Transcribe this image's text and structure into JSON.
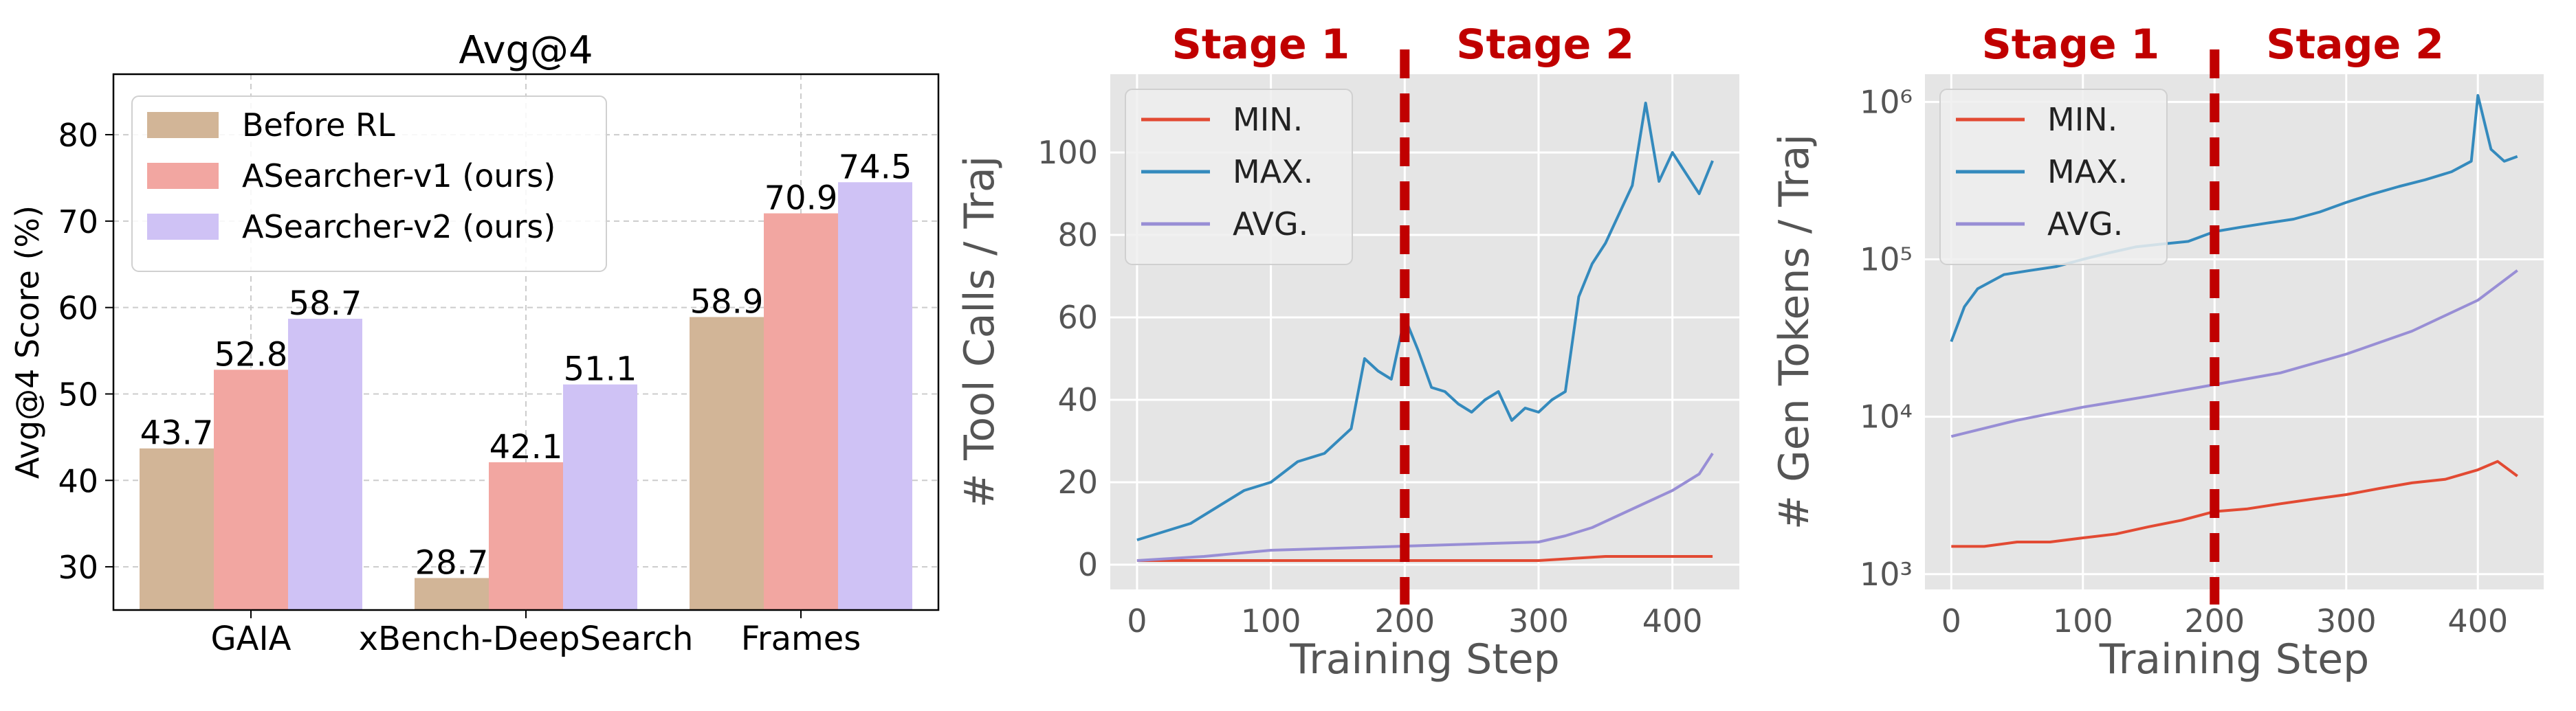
{
  "chart_data": [
    {
      "type": "bar",
      "title": "Avg@4",
      "xlabel": "",
      "ylabel": "Avg@4 Score (%)",
      "ylim": [
        25,
        87
      ],
      "yticks": [
        30,
        40,
        50,
        60,
        70,
        80
      ],
      "grid": true,
      "legend": "top-left",
      "categories": [
        "GAIA",
        "xBench-DeepSearch",
        "Frames"
      ],
      "series": [
        {
          "name": "Before RL",
          "values": [
            43.7,
            28.7,
            58.9
          ],
          "labels": [
            "43.7",
            "28.7",
            "58.9"
          ],
          "color": "#d2b597"
        },
        {
          "name": "ASearcher-v1 (ours)",
          "values": [
            52.8,
            42.1,
            70.9
          ],
          "labels": [
            "52.8",
            "42.1",
            "70.9"
          ],
          "color": "#f2a6a1"
        },
        {
          "name": "ASearcher-v2 (ours)",
          "values": [
            58.7,
            51.1,
            74.5
          ],
          "labels": [
            "58.7",
            "51.1",
            "74.5"
          ],
          "color": "#cfc2f5"
        }
      ]
    },
    {
      "type": "line",
      "title": "",
      "xlabel": "Training Step",
      "ylabel": "# Tool Calls / Traj",
      "xlim": [
        -20,
        450
      ],
      "ylim": [
        -6,
        119
      ],
      "xticks": [
        0,
        100,
        200,
        300,
        400
      ],
      "yticks": [
        0,
        20,
        40,
        60,
        80,
        100
      ],
      "grid": true,
      "legend": "top-left",
      "divider": {
        "x": 200,
        "left_label": "Stage 1",
        "right_label": "Stage 2",
        "color": "#c00000"
      },
      "series": [
        {
          "name": "MIN.",
          "color": "#e24a33",
          "x": [
            0,
            50,
            100,
            150,
            200,
            250,
            300,
            350,
            400,
            430
          ],
          "y": [
            1,
            1,
            1,
            1,
            1,
            1,
            1,
            2,
            2,
            2
          ]
        },
        {
          "name": "MAX.",
          "color": "#348abd",
          "x": [
            0,
            20,
            40,
            60,
            80,
            100,
            120,
            140,
            160,
            170,
            180,
            190,
            200,
            210,
            220,
            230,
            240,
            250,
            260,
            270,
            280,
            290,
            300,
            310,
            320,
            330,
            340,
            350,
            360,
            370,
            380,
            390,
            400,
            410,
            420,
            430
          ],
          "y": [
            6,
            8,
            10,
            14,
            18,
            20,
            25,
            27,
            33,
            50,
            47,
            45,
            60,
            52,
            43,
            42,
            39,
            37,
            40,
            42,
            35,
            38,
            37,
            40,
            42,
            65,
            73,
            78,
            85,
            92,
            112,
            93,
            100,
            95,
            90,
            98
          ]
        },
        {
          "name": "AVG.",
          "color": "#988ed5",
          "x": [
            0,
            50,
            100,
            150,
            200,
            250,
            300,
            320,
            340,
            360,
            380,
            400,
            420,
            430
          ],
          "y": [
            1,
            2,
            3.5,
            4,
            4.5,
            5,
            5.5,
            7,
            9,
            12,
            15,
            18,
            22,
            27
          ]
        }
      ]
    },
    {
      "type": "line",
      "title": "",
      "xlabel": "Training Step",
      "ylabel": "# Gen Tokens / Traj",
      "yscale": "log",
      "xlim": [
        -20,
        450
      ],
      "ylim": [
        800,
        1500000
      ],
      "xticks": [
        0,
        100,
        200,
        300,
        400
      ],
      "yticks": [
        1000,
        10000,
        100000,
        1000000
      ],
      "ytick_labels": [
        "10³",
        "10⁴",
        "10⁵",
        "10⁶"
      ],
      "grid": true,
      "legend": "top-left",
      "divider": {
        "x": 200,
        "left_label": "Stage 1",
        "right_label": "Stage 2",
        "color": "#c00000"
      },
      "series": [
        {
          "name": "MIN.",
          "color": "#e24a33",
          "x": [
            0,
            25,
            50,
            75,
            100,
            125,
            150,
            175,
            200,
            225,
            250,
            275,
            300,
            325,
            350,
            375,
            400,
            415,
            430
          ],
          "y": [
            1500,
            1500,
            1600,
            1600,
            1700,
            1800,
            2000,
            2200,
            2500,
            2600,
            2800,
            3000,
            3200,
            3500,
            3800,
            4000,
            4600,
            5200,
            4200
          ]
        },
        {
          "name": "MAX.",
          "color": "#348abd",
          "x": [
            0,
            10,
            20,
            40,
            60,
            80,
            100,
            120,
            140,
            160,
            180,
            200,
            220,
            240,
            260,
            280,
            300,
            320,
            340,
            360,
            380,
            395,
            400,
            410,
            420,
            430
          ],
          "y": [
            30000,
            50000,
            65000,
            80000,
            85000,
            90000,
            100000,
            110000,
            120000,
            125000,
            130000,
            150000,
            160000,
            170000,
            180000,
            200000,
            230000,
            260000,
            290000,
            320000,
            360000,
            420000,
            1100000,
            500000,
            420000,
            450000
          ]
        },
        {
          "name": "AVG.",
          "color": "#988ed5",
          "x": [
            0,
            50,
            100,
            150,
            200,
            250,
            300,
            350,
            400,
            430
          ],
          "y": [
            7500,
            9500,
            11500,
            13500,
            16000,
            19000,
            25000,
            35000,
            55000,
            85000
          ]
        }
      ]
    }
  ]
}
